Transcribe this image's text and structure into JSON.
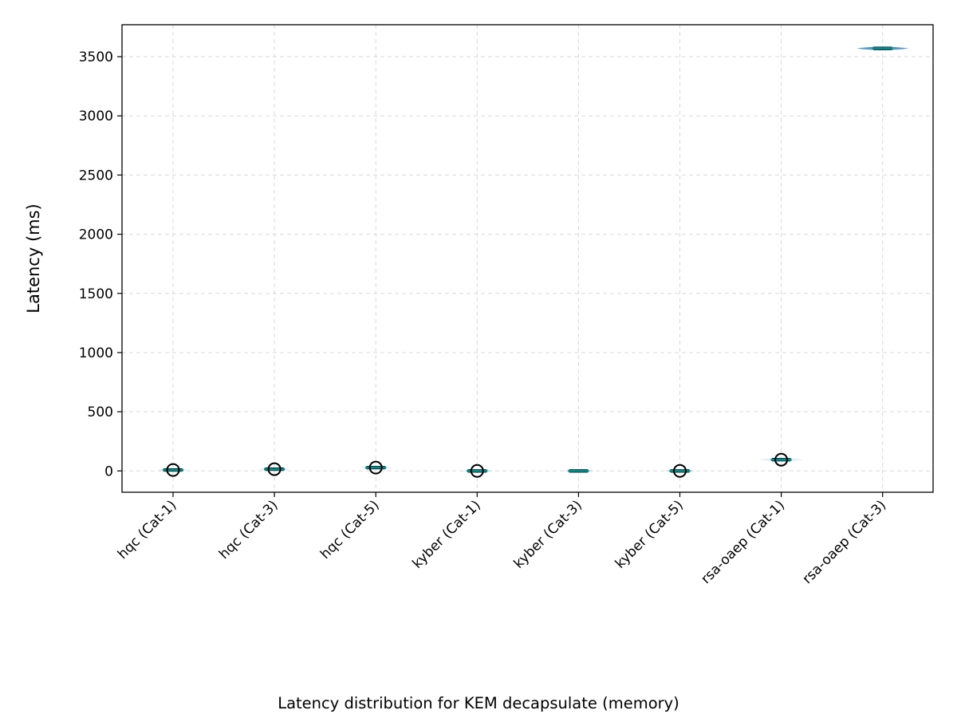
{
  "chart_data": {
    "type": "violin",
    "caption": "Latency distribution for KEM decapsulate (memory)",
    "xlabel": "",
    "ylabel": "Latency (ms)",
    "ylim": [
      -180,
      3770
    ],
    "yticks": [
      0,
      500,
      1000,
      1500,
      2000,
      2500,
      3000,
      3500
    ],
    "grid": true,
    "legend": "none",
    "categories": [
      "hqc (Cat-1)",
      "hqc (Cat-3)",
      "hqc (Cat-5)",
      "kyber (Cat-1)",
      "kyber (Cat-3)",
      "kyber (Cat-5)",
      "rsa-oaep (Cat-1)",
      "rsa-oaep (Cat-3)"
    ],
    "series": [
      {
        "values": [
          {
            "median": 8,
            "q1": 6,
            "q3": 10,
            "min": 4,
            "max": 12,
            "outliers": [
              8
            ]
          },
          {
            "median": 15,
            "q1": 13,
            "q3": 17,
            "min": 11,
            "max": 19,
            "outliers": [
              15
            ]
          },
          {
            "median": 28,
            "q1": 25,
            "q3": 31,
            "min": 22,
            "max": 34,
            "outliers": [
              28
            ]
          },
          {
            "median": 0,
            "q1": -1,
            "q3": 1,
            "min": -2,
            "max": 2,
            "outliers": [
              0
            ]
          },
          {
            "median": 0,
            "q1": -1,
            "q3": 1,
            "min": -2,
            "max": 2,
            "outliers": []
          },
          {
            "median": 0,
            "q1": -1,
            "q3": 1,
            "min": -2,
            "max": 2,
            "outliers": [
              0
            ]
          },
          {
            "median": 95,
            "q1": 92,
            "q3": 98,
            "min": 88,
            "max": 102,
            "outliers": [
              95
            ]
          },
          {
            "median": 3570,
            "q1": 3565,
            "q3": 3575,
            "min": 3555,
            "max": 3585,
            "outliers": []
          }
        ]
      }
    ]
  },
  "colors": {
    "violin_fill": "#1f77b4",
    "median_line": "#008b8b",
    "box_edge": "#000000",
    "grid": "#d9d9d9",
    "axes": "#000000"
  }
}
